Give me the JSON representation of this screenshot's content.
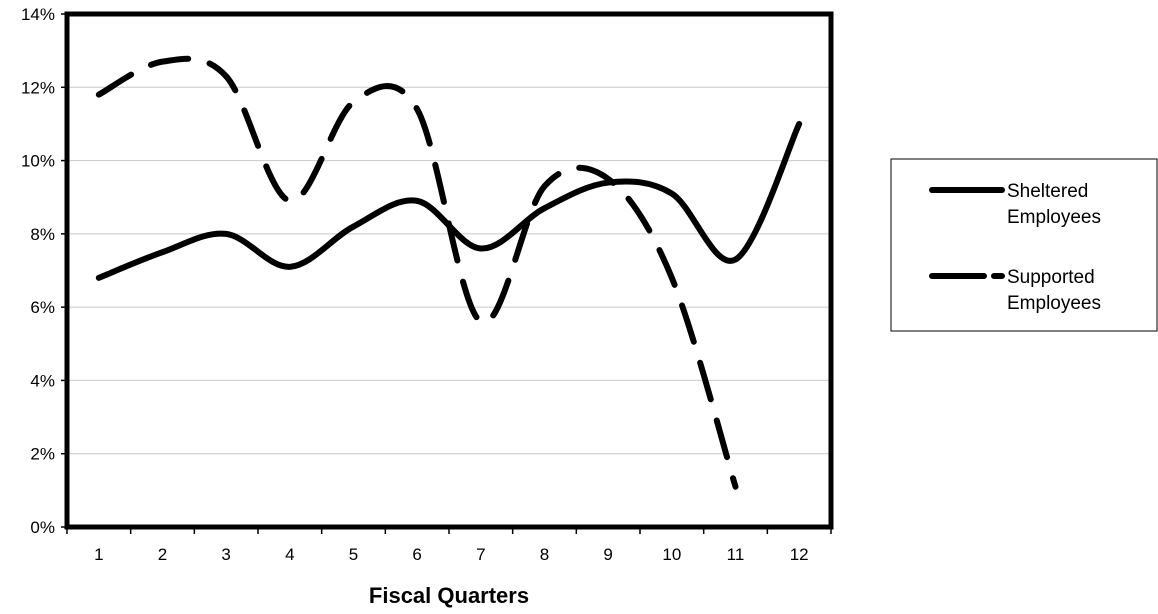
{
  "chart_data": {
    "type": "line",
    "title": "",
    "xlabel": "Fiscal Quarters",
    "ylabel": "",
    "categories": [
      "1",
      "2",
      "3",
      "4",
      "5",
      "6",
      "7",
      "8",
      "9",
      "10",
      "11",
      "12"
    ],
    "ylim": [
      0,
      14
    ],
    "y_ticks": [
      "0%",
      "2%",
      "4%",
      "6%",
      "8%",
      "10%",
      "12%",
      "14%"
    ],
    "grid": "horizontal",
    "legend_position": "right",
    "series": [
      {
        "name_lines": [
          "Sheltered",
          "Employees"
        ],
        "style": "solid",
        "color": "#000000",
        "values": [
          6.8,
          7.5,
          8.0,
          7.1,
          8.2,
          8.9,
          7.6,
          8.7,
          9.4,
          9.1,
          7.3,
          11.0
        ]
      },
      {
        "name_lines": [
          "Supported",
          "Employees"
        ],
        "style": "dashed",
        "color": "#000000",
        "values": [
          11.8,
          12.7,
          12.3,
          8.9,
          11.6,
          11.4,
          5.6,
          9.3,
          9.5,
          6.8,
          1.1,
          null
        ]
      }
    ]
  }
}
